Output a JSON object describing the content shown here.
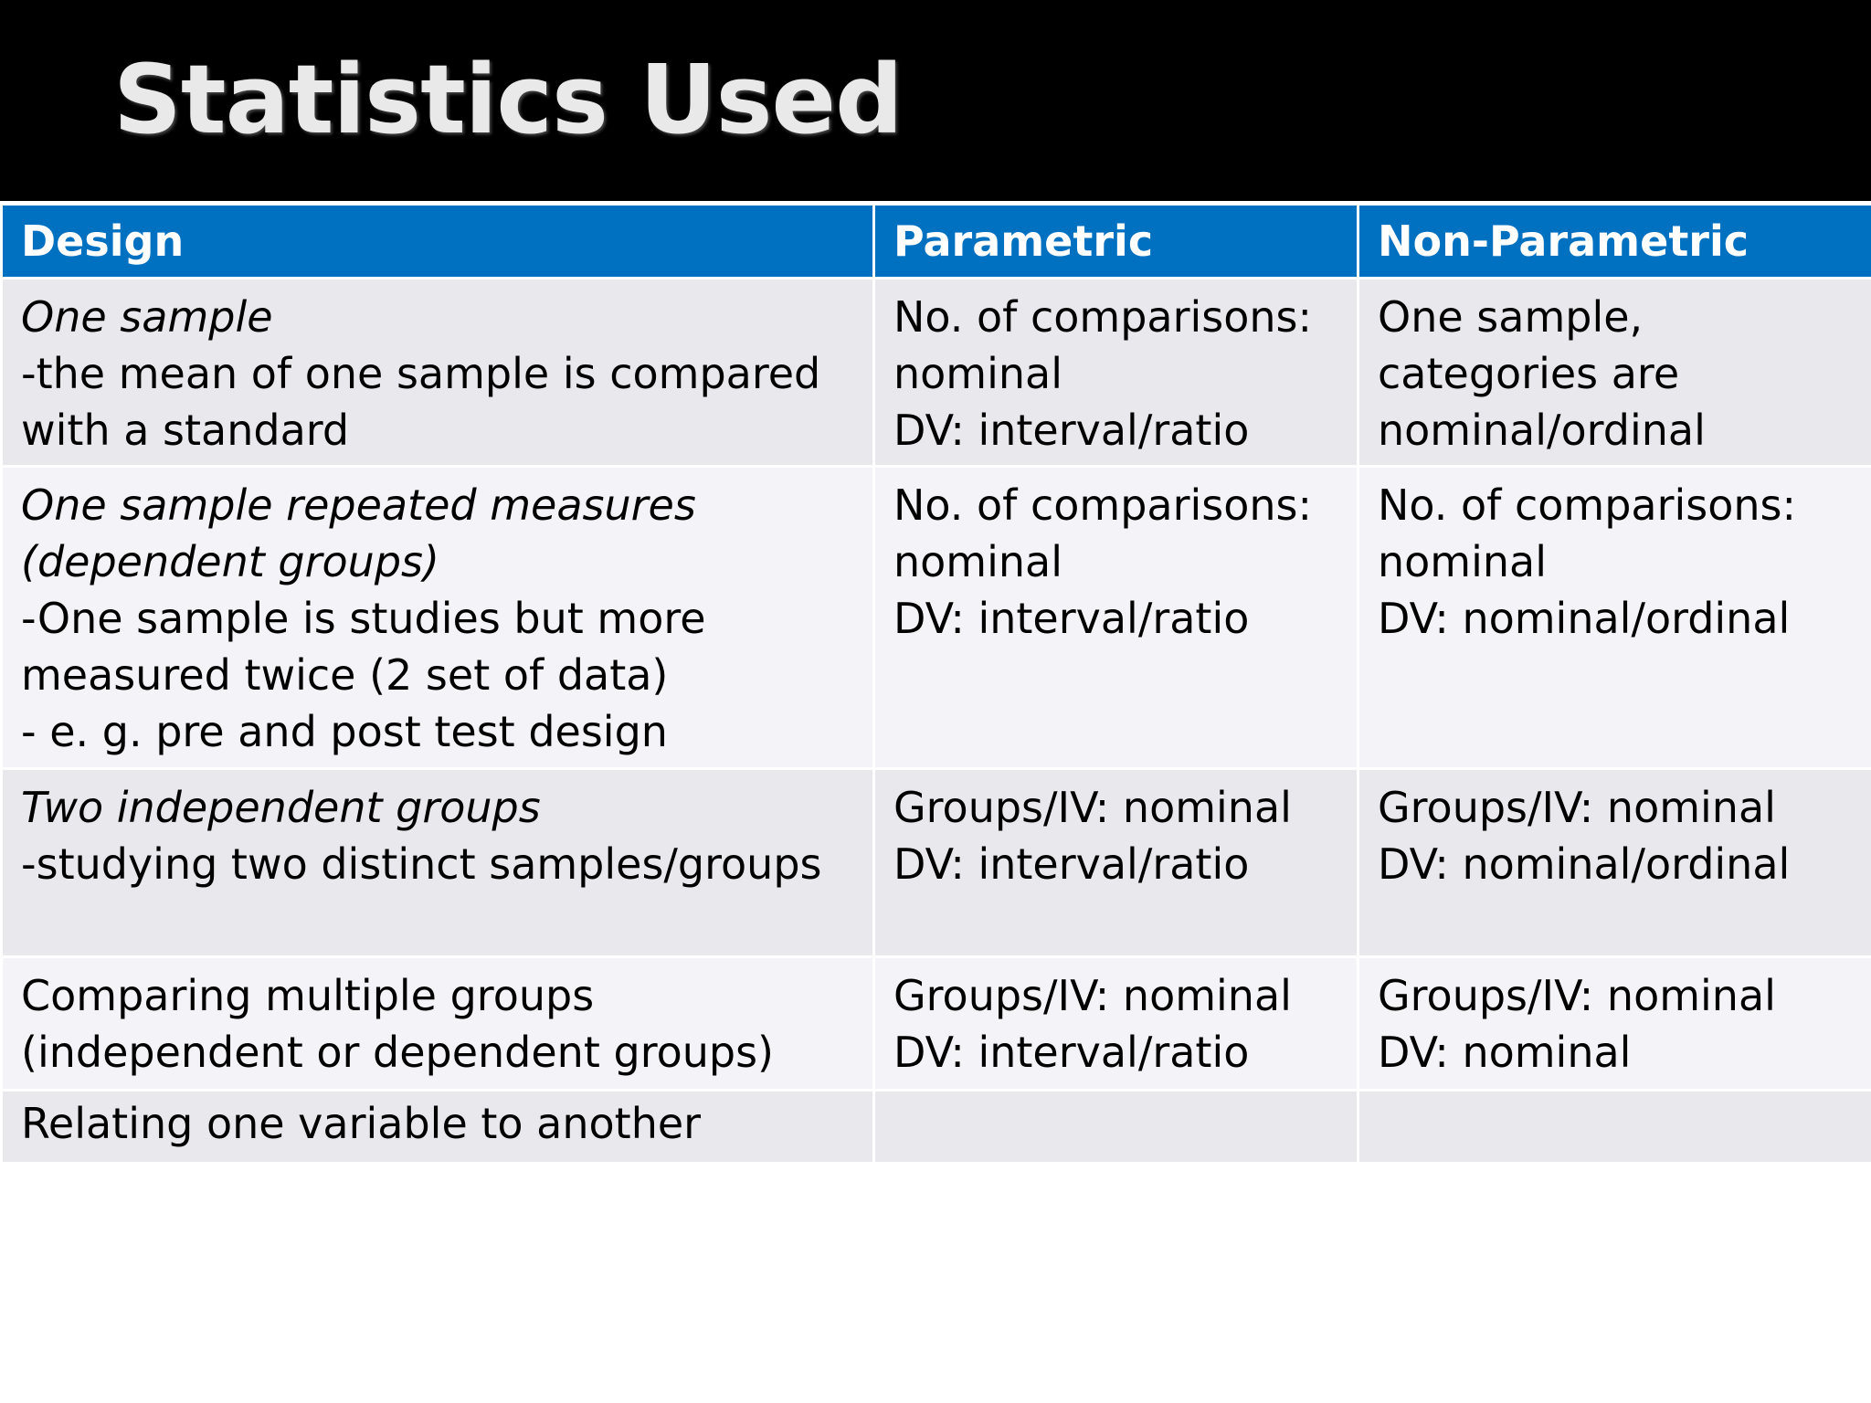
{
  "slide": {
    "title": "Statistics Used"
  },
  "table": {
    "headers": [
      "Design",
      "Parametric",
      "Non-Parametric"
    ],
    "rows": [
      {
        "design_title": "One sample",
        "design_desc": "-the mean of one sample is compared with a standard",
        "parametric": "No. of comparisons: nominal\nDV: interval/ratio",
        "nonparametric": "One sample, categories are nominal/ordinal"
      },
      {
        "design_title": "One sample repeated measures (dependent groups)",
        "design_desc": "-One sample is studies but more measured twice (2 set of data)\n- e. g. pre and post test design",
        "parametric": "No. of comparisons: nominal\nDV: interval/ratio",
        "nonparametric": "No. of comparisons: nominal\nDV: nominal/ordinal"
      },
      {
        "design_title": "Two independent groups",
        "design_desc": "-studying two distinct samples/groups",
        "parametric": "Groups/IV: nominal\nDV: interval/ratio",
        "nonparametric": "Groups/IV: nominal\nDV: nominal/ordinal"
      },
      {
        "design_desc": "Comparing multiple groups (independent or dependent groups)",
        "parametric": "Groups/IV: nominal\nDV: interval/ratio",
        "nonparametric": "Groups/IV: nominal\nDV: nominal"
      },
      {
        "design_desc": "Relating one variable to another",
        "parametric": "",
        "nonparametric": ""
      }
    ]
  },
  "colors": {
    "header_bg": "#0070c0",
    "title_bar_bg": "#000000",
    "row_odd_bg": "#e9e9ed",
    "row_even_bg": "#f4f4f8"
  }
}
